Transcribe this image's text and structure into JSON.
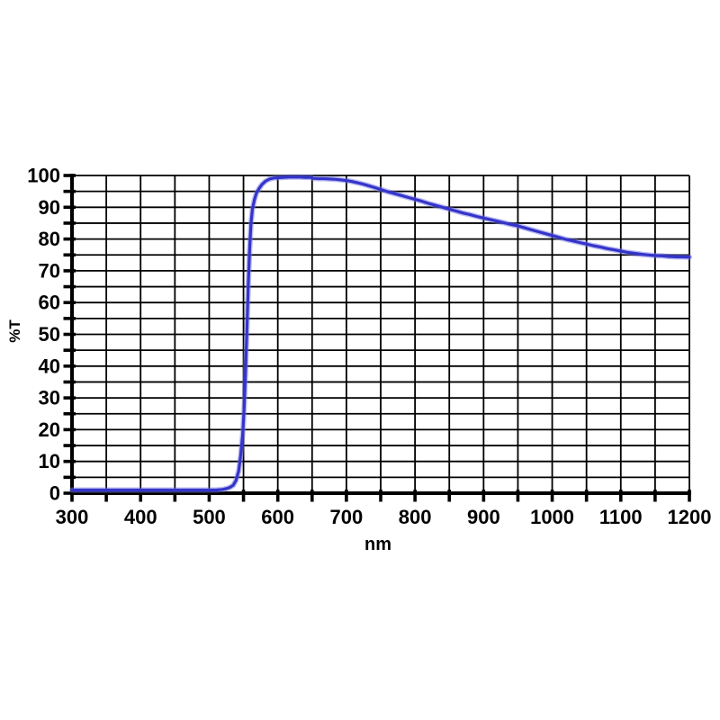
{
  "page": {
    "background": "#ffffff"
  },
  "chart_data": {
    "type": "line",
    "title": "",
    "xlabel": "nm",
    "ylabel": "%T",
    "xlim": [
      300,
      1200
    ],
    "ylim": [
      0,
      100
    ],
    "x_major_tick_step": 100,
    "x_minor_tick_step": 50,
    "y_major_tick_step": 10,
    "y_minor_tick_step": 5,
    "x_tick_labels": [
      "300",
      "400",
      "500",
      "600",
      "700",
      "800",
      "900",
      "1000",
      "1100",
      "1200"
    ],
    "y_tick_labels": [
      "0",
      "10",
      "20",
      "30",
      "40",
      "50",
      "60",
      "70",
      "80",
      "90",
      "100"
    ],
    "grid": true,
    "legend": false,
    "line_color": "#3434cb",
    "line_halo_color": "rgba(120,120,225,0.5)",
    "grid_color": "#000000",
    "axis_color": "#000000",
    "text_color": "#000000",
    "series": [
      {
        "name": "transmission",
        "points": [
          [
            300,
            1
          ],
          [
            330,
            1
          ],
          [
            360,
            1
          ],
          [
            390,
            1
          ],
          [
            420,
            1
          ],
          [
            450,
            1
          ],
          [
            480,
            1
          ],
          [
            500,
            1
          ],
          [
            510,
            1
          ],
          [
            520,
            1.2
          ],
          [
            526,
            1.5
          ],
          [
            530,
            1.8
          ],
          [
            535,
            2.5
          ],
          [
            539,
            4
          ],
          [
            543,
            7
          ],
          [
            546,
            12
          ],
          [
            549,
            19
          ],
          [
            551,
            27
          ],
          [
            553,
            38
          ],
          [
            555,
            52
          ],
          [
            557,
            66
          ],
          [
            559,
            77
          ],
          [
            561,
            85
          ],
          [
            563,
            89.5
          ],
          [
            566,
            92.5
          ],
          [
            569,
            94.5
          ],
          [
            573,
            96
          ],
          [
            577,
            97.2
          ],
          [
            582,
            98.2
          ],
          [
            588,
            98.9
          ],
          [
            594,
            99.2
          ],
          [
            600,
            99.3
          ],
          [
            608,
            99.4
          ],
          [
            616,
            99.5
          ],
          [
            624,
            99.5
          ],
          [
            632,
            99.5
          ],
          [
            640,
            99.4
          ],
          [
            648,
            99.4
          ],
          [
            652,
            99.1
          ],
          [
            660,
            99
          ],
          [
            668,
            99
          ],
          [
            676,
            98.9
          ],
          [
            684,
            98.8
          ],
          [
            692,
            98.6
          ],
          [
            700,
            98.4
          ],
          [
            708,
            98.1
          ],
          [
            716,
            97.7
          ],
          [
            724,
            97.3
          ],
          [
            732,
            96.8
          ],
          [
            740,
            96.3
          ],
          [
            750,
            95.6
          ],
          [
            760,
            94.9
          ],
          [
            770,
            94.3
          ],
          [
            780,
            93.7
          ],
          [
            790,
            93.1
          ],
          [
            800,
            92.5
          ],
          [
            810,
            91.9
          ],
          [
            820,
            91.2
          ],
          [
            830,
            90.6
          ],
          [
            840,
            90
          ],
          [
            850,
            89.4
          ],
          [
            860,
            88.8
          ],
          [
            870,
            88.2
          ],
          [
            880,
            87.7
          ],
          [
            890,
            87.1
          ],
          [
            900,
            86.6
          ],
          [
            910,
            86.1
          ],
          [
            920,
            85.6
          ],
          [
            930,
            85.1
          ],
          [
            940,
            84.6
          ],
          [
            950,
            84.1
          ],
          [
            960,
            83.5
          ],
          [
            970,
            82.9
          ],
          [
            980,
            82.3
          ],
          [
            990,
            81.7
          ],
          [
            1000,
            81.1
          ],
          [
            1010,
            80.5
          ],
          [
            1020,
            79.9
          ],
          [
            1030,
            79.4
          ],
          [
            1040,
            78.9
          ],
          [
            1050,
            78.4
          ],
          [
            1060,
            77.9
          ],
          [
            1070,
            77.5
          ],
          [
            1080,
            77
          ],
          [
            1090,
            76.6
          ],
          [
            1100,
            76.2
          ],
          [
            1110,
            75.8
          ],
          [
            1120,
            75.5
          ],
          [
            1130,
            75.2
          ],
          [
            1140,
            75
          ],
          [
            1150,
            74.8
          ],
          [
            1160,
            74.7
          ],
          [
            1170,
            74.5
          ],
          [
            1180,
            74.4
          ],
          [
            1190,
            74.35
          ],
          [
            1200,
            74.3
          ]
        ]
      }
    ]
  }
}
